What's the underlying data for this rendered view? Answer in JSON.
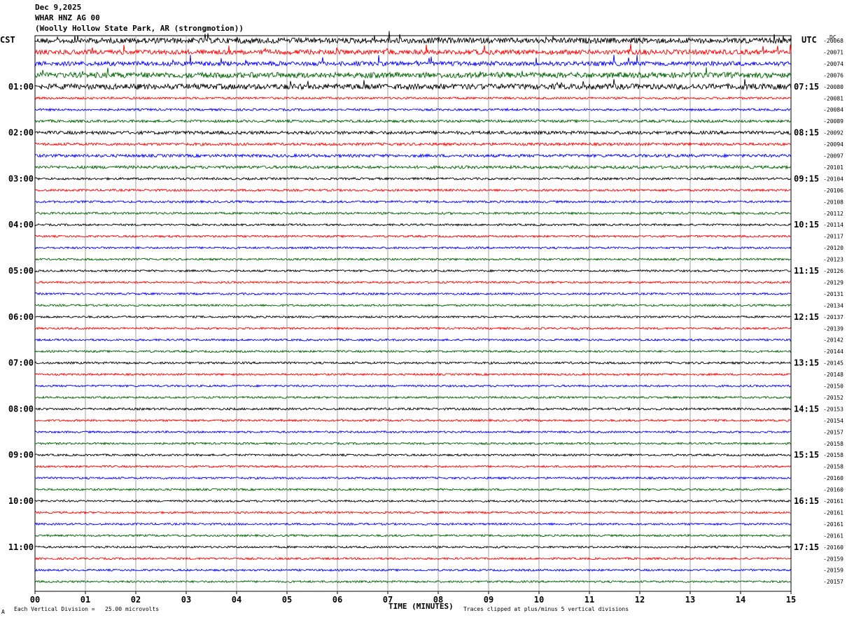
{
  "header": {
    "date": "Dec 9,2025",
    "station": "WHAR HNZ AG 00",
    "location": "(Woolly Hollow State Park, AR (strongmotion))"
  },
  "axes": {
    "left_label": "CST",
    "right_label": "UTC",
    "dc_label": "DC",
    "x_label": "TIME (MINUTES)",
    "x_ticks": [
      "00",
      "01",
      "02",
      "03",
      "04",
      "05",
      "06",
      "07",
      "08",
      "09",
      "10",
      "11",
      "12",
      "13",
      "14",
      "15"
    ]
  },
  "footer": {
    "left_note": "Each Vertical Division =   25.00 microvolts",
    "right_note": "Traces clipped at plus/minus 5 vertical divisions",
    "corner_mark": "A"
  },
  "chart_data": {
    "type": "line",
    "title": "",
    "xlabel": "TIME (MINUTES)",
    "xlim": [
      0,
      15
    ],
    "trace_colors": [
      "#000000",
      "#ff0000",
      "#0000ff",
      "#006400"
    ],
    "grid": "vertical lines each minute",
    "cst_hour_labels": [
      "01:00",
      "02:00",
      "03:00",
      "04:00",
      "05:00",
      "06:00",
      "07:00",
      "08:00",
      "09:00",
      "10:00",
      "11:00"
    ],
    "utc_hour_labels": [
      "07:15",
      "08:15",
      "09:15",
      "10:15",
      "11:15",
      "12:15",
      "13:15",
      "14:15",
      "15:15",
      "16:15",
      "17:15"
    ],
    "dc_offsets": [
      "-20068",
      "-20071",
      "-20074",
      "-20076",
      "-20080",
      "-20081",
      "-20084",
      "-20089",
      "-20092",
      "-20094",
      "-20097",
      "-20101",
      "-20104",
      "-20106",
      "-20108",
      "-20112",
      "-20114",
      "-20117",
      "-20120",
      "-20123",
      "-20126",
      "-20129",
      "-20131",
      "-20134",
      "-20137",
      "-20139",
      "-20142",
      "-20144",
      "-20145",
      "-20148",
      "-20150",
      "-20152",
      "-20153",
      "-20154",
      "-20157",
      "-20158",
      "-20158",
      "-20158",
      "-20160",
      "-20160",
      "-20161",
      "-20161",
      "-20161",
      "-20161",
      "-20160",
      "-20159",
      "-20159",
      "-20157"
    ],
    "trace_activity": [
      3,
      2.6,
      2.4,
      3,
      3,
      1.2,
      1.2,
      1.4,
      1.8,
      1.5,
      1.6,
      1.6,
      1.2,
      1.2,
      1.2,
      1.2,
      1.1,
      1.1,
      1.1,
      1.1,
      1.1,
      1.1,
      1.1,
      1.1,
      1.1,
      1.1,
      1.1,
      1.1,
      1.2,
      1.1,
      1.1,
      1.1,
      1.2,
      1.1,
      1.1,
      1.1,
      1.1,
      1.1,
      1.1,
      1.1,
      1.1,
      1.1,
      1.1,
      1.1,
      1.1,
      1.1,
      1.1,
      1.1
    ]
  }
}
